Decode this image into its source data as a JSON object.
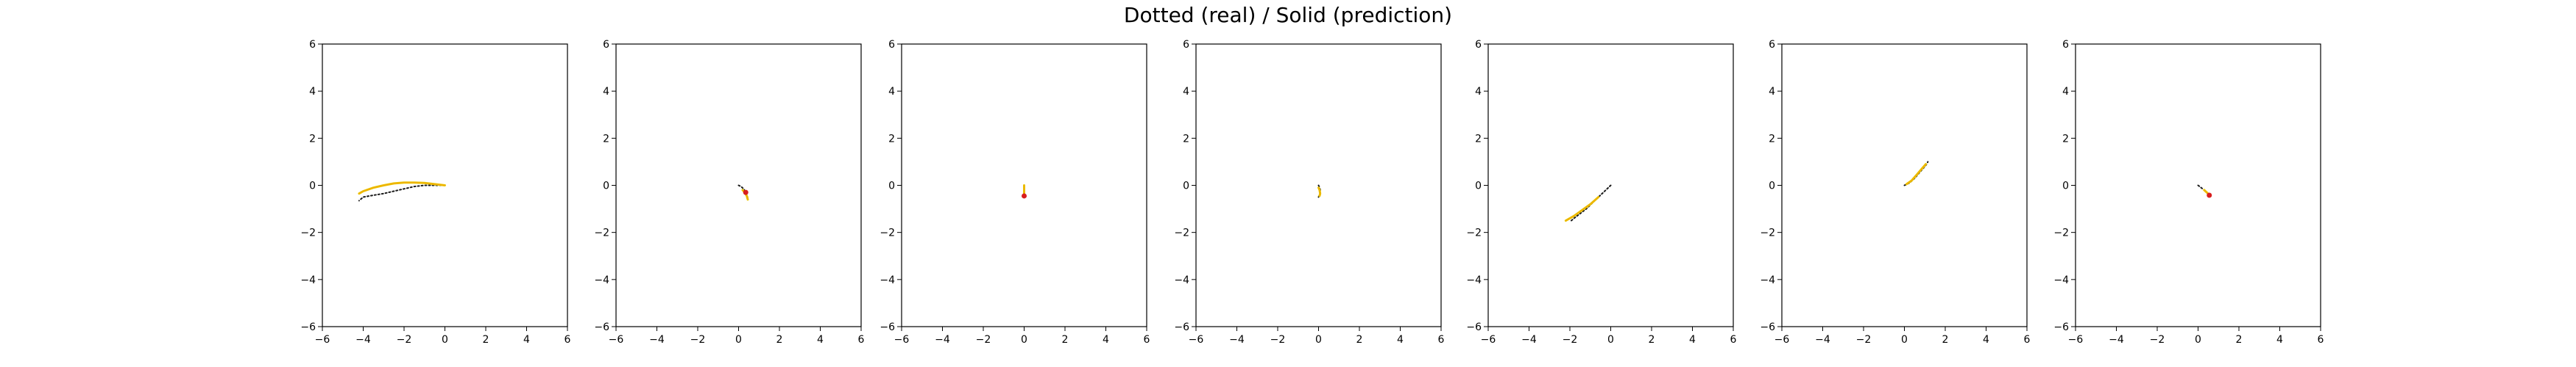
{
  "figure": {
    "title": "Dotted (real) / Solid (prediction)"
  },
  "colors": {
    "real": "#1a1a1a",
    "prediction": "#e8c800",
    "prediction_alt": "#f5a000",
    "marker": "#d81e1e",
    "axes": "#000000"
  },
  "chart_data": [
    {
      "type": "line",
      "xlim": [
        -6,
        6
      ],
      "ylim": [
        -6,
        6
      ],
      "xticks": [
        -6,
        -4,
        -2,
        0,
        2,
        4,
        6
      ],
      "yticks": [
        -6,
        -4,
        -2,
        0,
        2,
        4,
        6
      ],
      "tick_labels": [
        "−6",
        "−4",
        "−2",
        "0",
        "2",
        "4",
        "6"
      ],
      "series": [
        {
          "style": "dotted",
          "x": [
            0,
            -0.5,
            -1,
            -1.5,
            -2,
            -2.5,
            -3,
            -3.5,
            -4,
            -4.2
          ],
          "y": [
            0,
            0,
            0,
            -0.05,
            -0.15,
            -0.25,
            -0.35,
            -0.42,
            -0.5,
            -0.65
          ]
        },
        {
          "style": "solid",
          "x": [
            0,
            -0.5,
            -1,
            -1.5,
            -2,
            -2.5,
            -3,
            -3.5,
            -4,
            -4.2
          ],
          "y": [
            0,
            0.05,
            0.1,
            0.12,
            0.12,
            0.08,
            0,
            -0.1,
            -0.25,
            -0.35
          ]
        }
      ],
      "markers": []
    },
    {
      "type": "line",
      "xlim": [
        -6,
        6
      ],
      "ylim": [
        -6,
        6
      ],
      "xticks": [
        -6,
        -4,
        -2,
        0,
        2,
        4,
        6
      ],
      "yticks": [
        -6,
        -4,
        -2,
        0,
        2,
        4,
        6
      ],
      "tick_labels": [
        "−6",
        "−4",
        "−2",
        "0",
        "2",
        "4",
        "6"
      ],
      "series": [
        {
          "style": "dotted",
          "x": [
            0,
            0.12,
            0.25,
            0.35,
            0.42,
            0.45
          ],
          "y": [
            0,
            -0.05,
            -0.15,
            -0.3,
            -0.45,
            -0.55
          ]
        },
        {
          "style": "solid",
          "x": [
            0.2,
            0.3,
            0.4,
            0.45
          ],
          "y": [
            -0.2,
            -0.3,
            -0.45,
            -0.6
          ]
        }
      ],
      "markers": [
        {
          "x": 0.35,
          "y": -0.3
        }
      ]
    },
    {
      "type": "line",
      "xlim": [
        -6,
        6
      ],
      "ylim": [
        -6,
        6
      ],
      "xticks": [
        -6,
        -4,
        -2,
        0,
        2,
        4,
        6
      ],
      "yticks": [
        -6,
        -4,
        -2,
        0,
        2,
        4,
        6
      ],
      "tick_labels": [
        "−6",
        "−4",
        "−2",
        "0",
        "2",
        "4",
        "6"
      ],
      "series": [
        {
          "style": "dotted",
          "x": [
            0,
            0,
            0,
            0
          ],
          "y": [
            0,
            -0.15,
            -0.3,
            -0.45
          ]
        },
        {
          "style": "solid",
          "x": [
            0,
            0,
            0
          ],
          "y": [
            0,
            -0.2,
            -0.4
          ]
        }
      ],
      "markers": [
        {
          "x": 0,
          "y": -0.45
        }
      ]
    },
    {
      "type": "line",
      "xlim": [
        -6,
        6
      ],
      "ylim": [
        -6,
        6
      ],
      "xticks": [
        -6,
        -4,
        -2,
        0,
        2,
        4,
        6
      ],
      "yticks": [
        -6,
        -4,
        -2,
        0,
        2,
        4,
        6
      ],
      "tick_labels": [
        "−6",
        "−4",
        "−2",
        "0",
        "2",
        "4",
        "6"
      ],
      "series": [
        {
          "style": "dotted",
          "x": [
            0,
            0.05,
            0.1,
            0.05,
            0
          ],
          "y": [
            0,
            -0.1,
            -0.25,
            -0.4,
            -0.5
          ]
        },
        {
          "style": "solid",
          "x": [
            0,
            0.05,
            0.08,
            0.05
          ],
          "y": [
            -0.1,
            -0.2,
            -0.35,
            -0.45
          ]
        }
      ],
      "markers": []
    },
    {
      "type": "line",
      "xlim": [
        -6,
        6
      ],
      "ylim": [
        -6,
        6
      ],
      "xticks": [
        -6,
        -4,
        -2,
        0,
        2,
        4,
        6
      ],
      "yticks": [
        -6,
        -4,
        -2,
        0,
        2,
        4,
        6
      ],
      "tick_labels": [
        "−6",
        "−4",
        "−2",
        "0",
        "2",
        "4",
        "6"
      ],
      "series": [
        {
          "style": "dotted",
          "x": [
            0,
            -0.3,
            -0.6,
            -0.9,
            -1.2,
            -1.5,
            -1.8,
            -2.0
          ],
          "y": [
            0,
            -0.25,
            -0.5,
            -0.75,
            -1.0,
            -1.2,
            -1.4,
            -1.55
          ]
        },
        {
          "style": "solid",
          "x": [
            -0.6,
            -1.0,
            -1.4,
            -1.8,
            -2.2
          ],
          "y": [
            -0.5,
            -0.8,
            -1.05,
            -1.3,
            -1.5
          ]
        }
      ],
      "markers": []
    },
    {
      "type": "line",
      "xlim": [
        -6,
        6
      ],
      "ylim": [
        -6,
        6
      ],
      "xticks": [
        -6,
        -4,
        -2,
        0,
        2,
        4,
        6
      ],
      "yticks": [
        -6,
        -4,
        -2,
        0,
        2,
        4,
        6
      ],
      "tick_labels": [
        "−6",
        "−4",
        "−2",
        "0",
        "2",
        "4",
        "6"
      ],
      "series": [
        {
          "style": "dotted",
          "x": [
            0,
            0.25,
            0.5,
            0.7,
            0.9,
            1.05,
            1.15
          ],
          "y": [
            0,
            0.1,
            0.3,
            0.5,
            0.7,
            0.85,
            1.0
          ]
        },
        {
          "style": "solid",
          "x": [
            0.1,
            0.35,
            0.6,
            0.85,
            1.05
          ],
          "y": [
            0.05,
            0.2,
            0.45,
            0.7,
            0.9
          ]
        }
      ],
      "markers": []
    },
    {
      "type": "line",
      "xlim": [
        -6,
        6
      ],
      "ylim": [
        -6,
        6
      ],
      "xticks": [
        -6,
        -4,
        -2,
        0,
        2,
        4,
        6
      ],
      "yticks": [
        -6,
        -4,
        -2,
        0,
        2,
        4,
        6
      ],
      "tick_labels": [
        "−6",
        "−4",
        "−2",
        "0",
        "2",
        "4",
        "6"
      ],
      "series": [
        {
          "style": "dotted",
          "x": [
            0,
            0.15,
            0.3,
            0.45,
            0.55
          ],
          "y": [
            0,
            -0.1,
            -0.2,
            -0.32,
            -0.42
          ]
        },
        {
          "style": "solid",
          "x": [
            0.3,
            0.45,
            0.55
          ],
          "y": [
            -0.2,
            -0.32,
            -0.42
          ]
        }
      ],
      "markers": [
        {
          "x": 0.55,
          "y": -0.42
        }
      ]
    }
  ]
}
